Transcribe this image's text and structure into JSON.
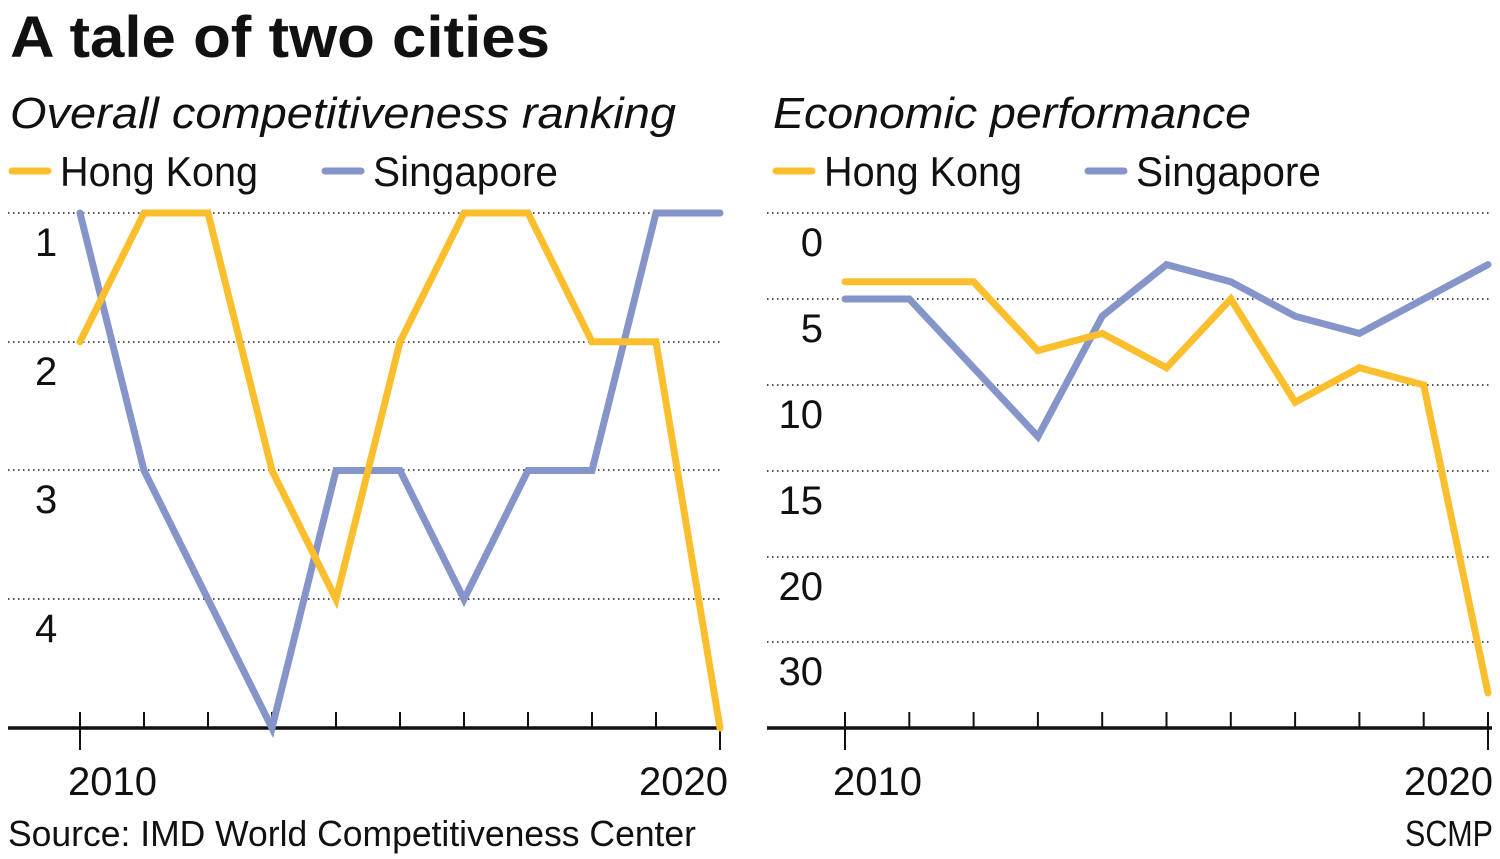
{
  "title": "A tale of two cities",
  "source": "Source: IMD World Competitiveness Center",
  "credit": "SCMP",
  "colors": {
    "hong_kong": "#FBBF2E",
    "singapore": "#8595C9"
  },
  "chart_data": [
    {
      "type": "line",
      "title": "Overall competitiveness ranking",
      "x": [
        2010,
        2011,
        2012,
        2013,
        2014,
        2015,
        2016,
        2017,
        2018,
        2019,
        2020
      ],
      "x_tick_labels": [
        "2010",
        "2020"
      ],
      "y_ticks": [
        1,
        2,
        3,
        4
      ],
      "y_tick_labels": [
        "1",
        "2",
        "3",
        "4"
      ],
      "ylim": [
        1,
        5
      ],
      "y_inverted": true,
      "grid": "horizontal dotted",
      "legend": "top-left",
      "series": [
        {
          "name": "Hong Kong",
          "color": "#FBBF2E",
          "values": [
            2,
            1,
            1,
            3,
            4,
            2,
            1,
            1,
            2,
            2,
            5
          ]
        },
        {
          "name": "Singapore",
          "color": "#8595C9",
          "values": [
            1,
            3,
            4,
            5,
            3,
            3,
            4,
            3,
            3,
            1,
            1
          ]
        }
      ]
    },
    {
      "type": "line",
      "title": "Economic performance",
      "x": [
        2010,
        2011,
        2012,
        2013,
        2014,
        2015,
        2016,
        2017,
        2018,
        2019,
        2020
      ],
      "x_tick_labels": [
        "2010",
        "2020"
      ],
      "y_ticks": [
        0,
        5,
        10,
        15,
        20,
        30
      ],
      "y_tick_labels": [
        "0",
        "5",
        "10",
        "15",
        "20",
        "30"
      ],
      "y_inverted": true,
      "y_scale": "non-linear (equal spacing between ticks)",
      "grid": "horizontal dotted",
      "legend": "top-left",
      "series": [
        {
          "name": "Hong Kong",
          "color": "#FBBF2E",
          "values": [
            4,
            4,
            4,
            8,
            7,
            9,
            5,
            11,
            9,
            10,
            36
          ]
        },
        {
          "name": "Singapore",
          "color": "#8595C9",
          "values": [
            5,
            5,
            9,
            13,
            6,
            3,
            4,
            6,
            7,
            5,
            3
          ]
        }
      ]
    }
  ]
}
